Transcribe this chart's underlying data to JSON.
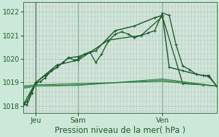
{
  "background_color": "#cce8d8",
  "plot_bg_color": "#cce8d8",
  "grid_major_color": "#aaccbb",
  "grid_minor_color_v": "#ddbbcc",
  "grid_minor_color_h": "#aaccbb",
  "line_colors": [
    "#1a5c2a",
    "#1a5c2a",
    "#2d7a3e",
    "#2d7a3e",
    "#3a9a50",
    "#1a5c2a"
  ],
  "title": "Pression niveau de la mer( hPa )",
  "ylim": [
    1017.7,
    1022.4
  ],
  "yticks": [
    1018,
    1019,
    1020,
    1021,
    1022
  ],
  "xlim": [
    0.0,
    1.0
  ],
  "day_labels": [
    [
      "Jeu",
      0.065
    ],
    [
      "Sam",
      0.285
    ],
    [
      "Ven",
      0.72
    ]
  ],
  "vline_positions": [
    0.065,
    0.285,
    0.72
  ],
  "vline_color": "#3a6a4a",
  "series": [
    {
      "x": [
        0.0,
        0.02,
        0.045,
        0.065,
        0.09,
        0.115,
        0.145,
        0.175,
        0.205,
        0.235,
        0.265,
        0.285,
        0.315,
        0.345,
        0.375,
        0.405,
        0.44,
        0.475,
        0.51,
        0.545,
        0.575,
        0.61,
        0.645,
        0.68,
        0.72,
        0.755,
        0.79,
        0.825,
        0.86,
        0.895,
        0.93,
        0.96,
        1.0
      ],
      "y": [
        1018.1,
        1018.05,
        1018.55,
        1018.95,
        1019.05,
        1019.2,
        1019.5,
        1019.65,
        1019.85,
        1020.05,
        1019.95,
        1020.0,
        1020.2,
        1020.3,
        1019.85,
        1020.2,
        1020.75,
        1021.05,
        1021.15,
        1021.05,
        1020.9,
        1021.0,
        1021.1,
        1021.2,
        1021.95,
        1021.85,
        1020.6,
        1019.7,
        1019.55,
        1019.35,
        1019.3,
        1019.3,
        1018.85
      ],
      "color": "#1a5c2a",
      "lw": 1.0,
      "marker": "+"
    },
    {
      "x": [
        0.0,
        0.02,
        0.065,
        0.115,
        0.175,
        0.235,
        0.285,
        0.375,
        0.475,
        0.575,
        0.68,
        0.72,
        0.755,
        0.825,
        0.895,
        0.96,
        1.0
      ],
      "y": [
        1018.05,
        1018.2,
        1019.0,
        1019.3,
        1019.65,
        1020.05,
        1020.1,
        1020.35,
        1021.2,
        1021.4,
        1021.75,
        1021.85,
        1019.65,
        1019.5,
        1019.35,
        1019.25,
        1018.85
      ],
      "color": "#1a5c2a",
      "lw": 1.1,
      "marker": "+"
    },
    {
      "x": [
        0.0,
        0.065,
        0.175,
        0.285,
        0.44,
        0.61,
        0.72,
        0.825,
        0.93,
        1.0
      ],
      "y": [
        1018.05,
        1019.0,
        1019.75,
        1019.95,
        1020.8,
        1021.0,
        1021.8,
        1018.95,
        1018.9,
        1018.85
      ],
      "color": "#1a5c2a",
      "lw": 1.0,
      "marker": "+"
    },
    {
      "x": [
        0.0,
        0.065,
        0.285,
        0.72,
        1.0
      ],
      "y": [
        1018.85,
        1018.9,
        1018.95,
        1019.05,
        1018.85
      ],
      "color": "#2d7a3e",
      "lw": 0.9,
      "marker": null
    },
    {
      "x": [
        0.0,
        0.065,
        0.285,
        0.72,
        1.0
      ],
      "y": [
        1018.8,
        1018.85,
        1018.9,
        1019.1,
        1018.85
      ],
      "color": "#3a9a50",
      "lw": 0.9,
      "marker": null
    },
    {
      "x": [
        0.0,
        0.065,
        0.285,
        0.72,
        1.0
      ],
      "y": [
        1018.75,
        1018.85,
        1018.88,
        1019.15,
        1018.85
      ],
      "color": "#2d7a3e",
      "lw": 0.8,
      "marker": null
    }
  ],
  "xlabel_fontsize": 8.5,
  "xlabel_color": "#1a5c2a",
  "ytick_fontsize": 7,
  "xtick_fontsize": 7.5,
  "tick_color": "#1a5c2a"
}
